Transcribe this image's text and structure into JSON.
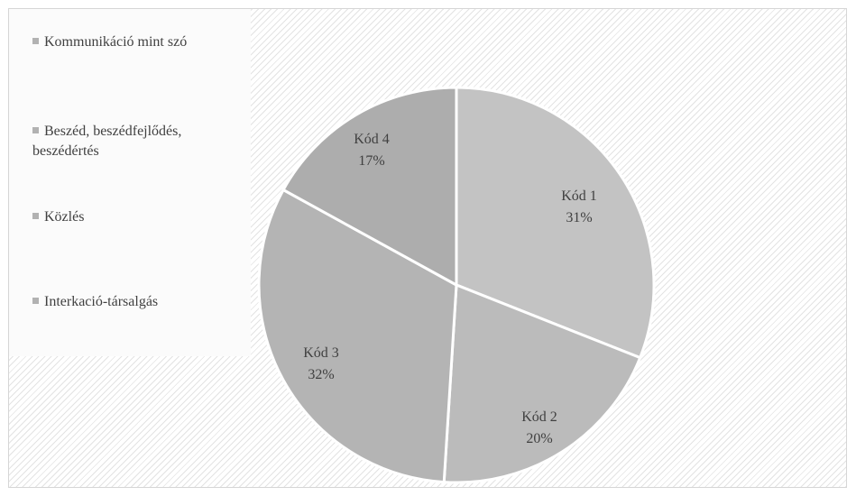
{
  "chart_data": {
    "type": "pie",
    "title": "",
    "legend_position": "left",
    "legend": [
      "Kommunikáció mint szó",
      "Beszéd, beszédfejlődés, beszédértés",
      "Közlés",
      "Interkació-társalgás"
    ],
    "slices": [
      {
        "label": "Kód 1",
        "percent_label": "31%",
        "value": 31,
        "color": "#c3c3c3"
      },
      {
        "label": "Kód 2",
        "percent_label": "20%",
        "value": 20,
        "color": "#bbbbbb"
      },
      {
        "label": "Kód 3",
        "percent_label": "32%",
        "value": 32,
        "color": "#b4b4b4"
      },
      {
        "label": "Kód 4",
        "percent_label": "17%",
        "value": 17,
        "color": "#adadad"
      }
    ]
  },
  "legend_items": [
    {
      "line1": "Kommunikáció mint szó",
      "line2": ""
    },
    {
      "line1": "Beszéd, beszédfejlődés,",
      "line2": "beszédértés"
    },
    {
      "line1": "Közlés",
      "line2": ""
    },
    {
      "line1": "Interkació-társalgás",
      "line2": ""
    }
  ]
}
